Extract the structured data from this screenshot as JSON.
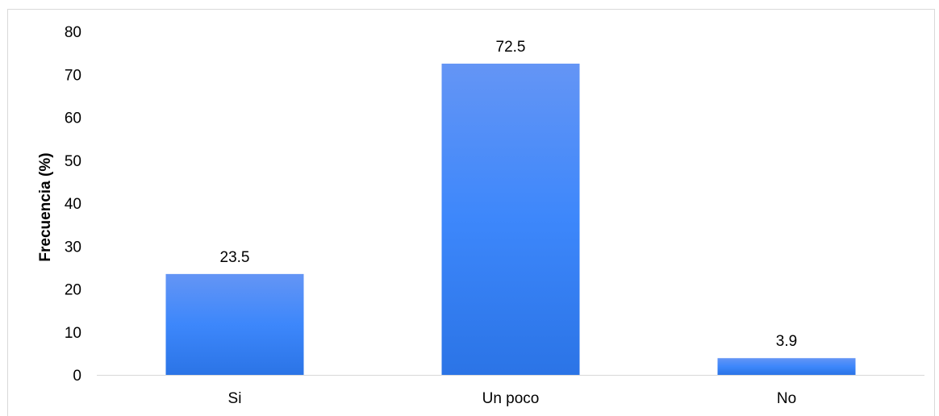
{
  "chart_data": {
    "type": "bar",
    "categories": [
      "Si",
      "Un poco",
      "No"
    ],
    "values": [
      23.5,
      72.5,
      3.9
    ],
    "data_labels": [
      "23.5",
      "72.5",
      "3.9"
    ],
    "title": "",
    "xlabel": "",
    "ylabel": "Frecuencia (%)",
    "ylim": [
      0,
      80
    ],
    "yticks": [
      0,
      10,
      20,
      30,
      40,
      50,
      60,
      70,
      80
    ],
    "ytick_labels": [
      "0",
      "10",
      "20",
      "30",
      "40",
      "50",
      "60",
      "70",
      "80"
    ],
    "grid": false,
    "legend": "none",
    "colors": {
      "bar_top": "#6495f5",
      "bar_mid": "#3d87fb",
      "bar_bottom": "#2b74e6",
      "axis": "#d9d9d9"
    }
  }
}
